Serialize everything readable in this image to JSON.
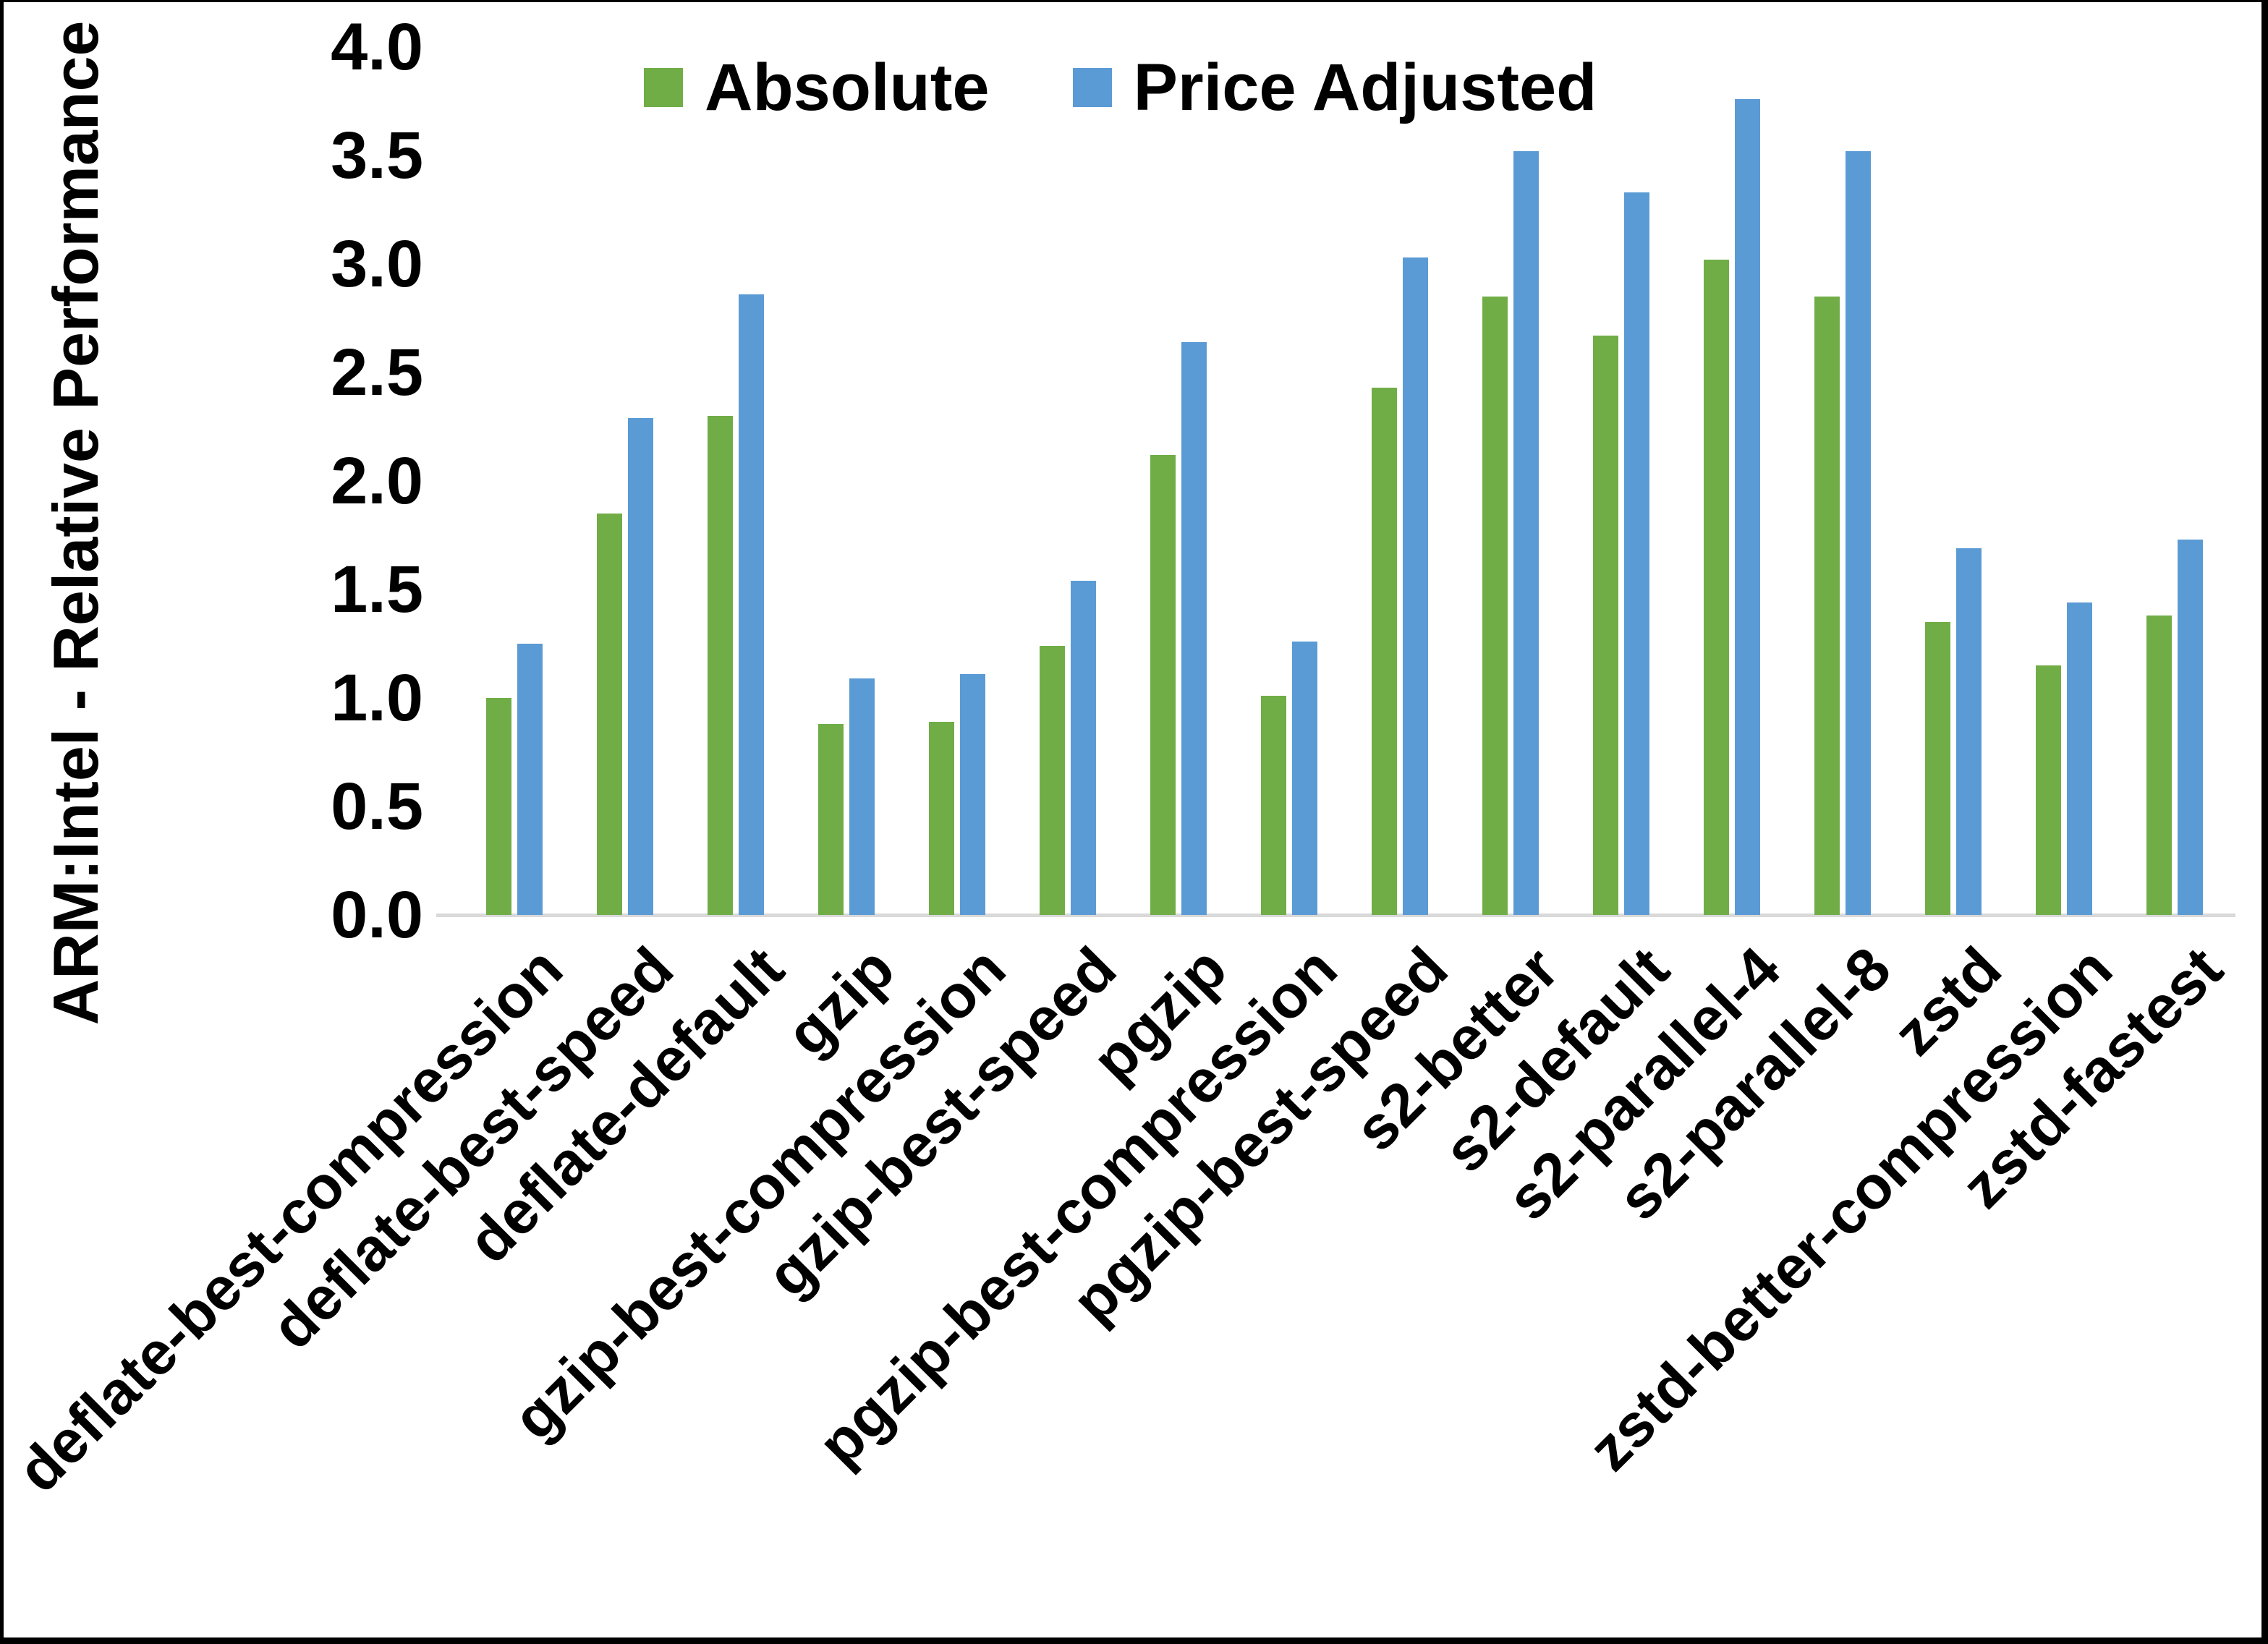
{
  "page": {
    "background": "#ffffff",
    "frame_color": "#000000"
  },
  "chart_data": {
    "type": "bar",
    "title": "",
    "xlabel": "",
    "ylabel": "ARM:Intel - Relative Performance",
    "ylim": [
      0.0,
      4.0
    ],
    "ytick_step": 0.5,
    "ytick_labels": [
      "0.0",
      "0.5",
      "1.0",
      "1.5",
      "2.0",
      "2.5",
      "3.0",
      "3.5",
      "4.0"
    ],
    "grid": false,
    "legend_position": "top-center",
    "axis_line_color": "#d9d9d9",
    "text_color": "#000000",
    "categories": [
      "deflate-best-compression",
      "deflate-best-speed",
      "deflate-default",
      "gzip",
      "gzip-best-compression",
      "gzip-best-speed",
      "pgzip",
      "pgzip-best-compression",
      "pgzip-best-speed",
      "s2-better",
      "s2-default",
      "s2-parallel-4",
      "s2-parallel-8",
      "zstd",
      "zstd-better-compression",
      "zstd-fastest"
    ],
    "series": [
      {
        "name": "Absolute",
        "color": "#70AD47",
        "values": [
          1.0,
          1.85,
          2.3,
          0.88,
          0.89,
          1.24,
          2.12,
          1.01,
          2.43,
          2.85,
          2.67,
          3.02,
          2.85,
          1.35,
          1.15,
          1.38
        ]
      },
      {
        "name": "Price Adjusted",
        "color": "#5B9BD5",
        "values": [
          1.25,
          2.29,
          2.86,
          1.09,
          1.11,
          1.54,
          2.64,
          1.26,
          3.03,
          3.52,
          3.33,
          3.76,
          3.52,
          1.69,
          1.44,
          1.73
        ]
      }
    ]
  }
}
